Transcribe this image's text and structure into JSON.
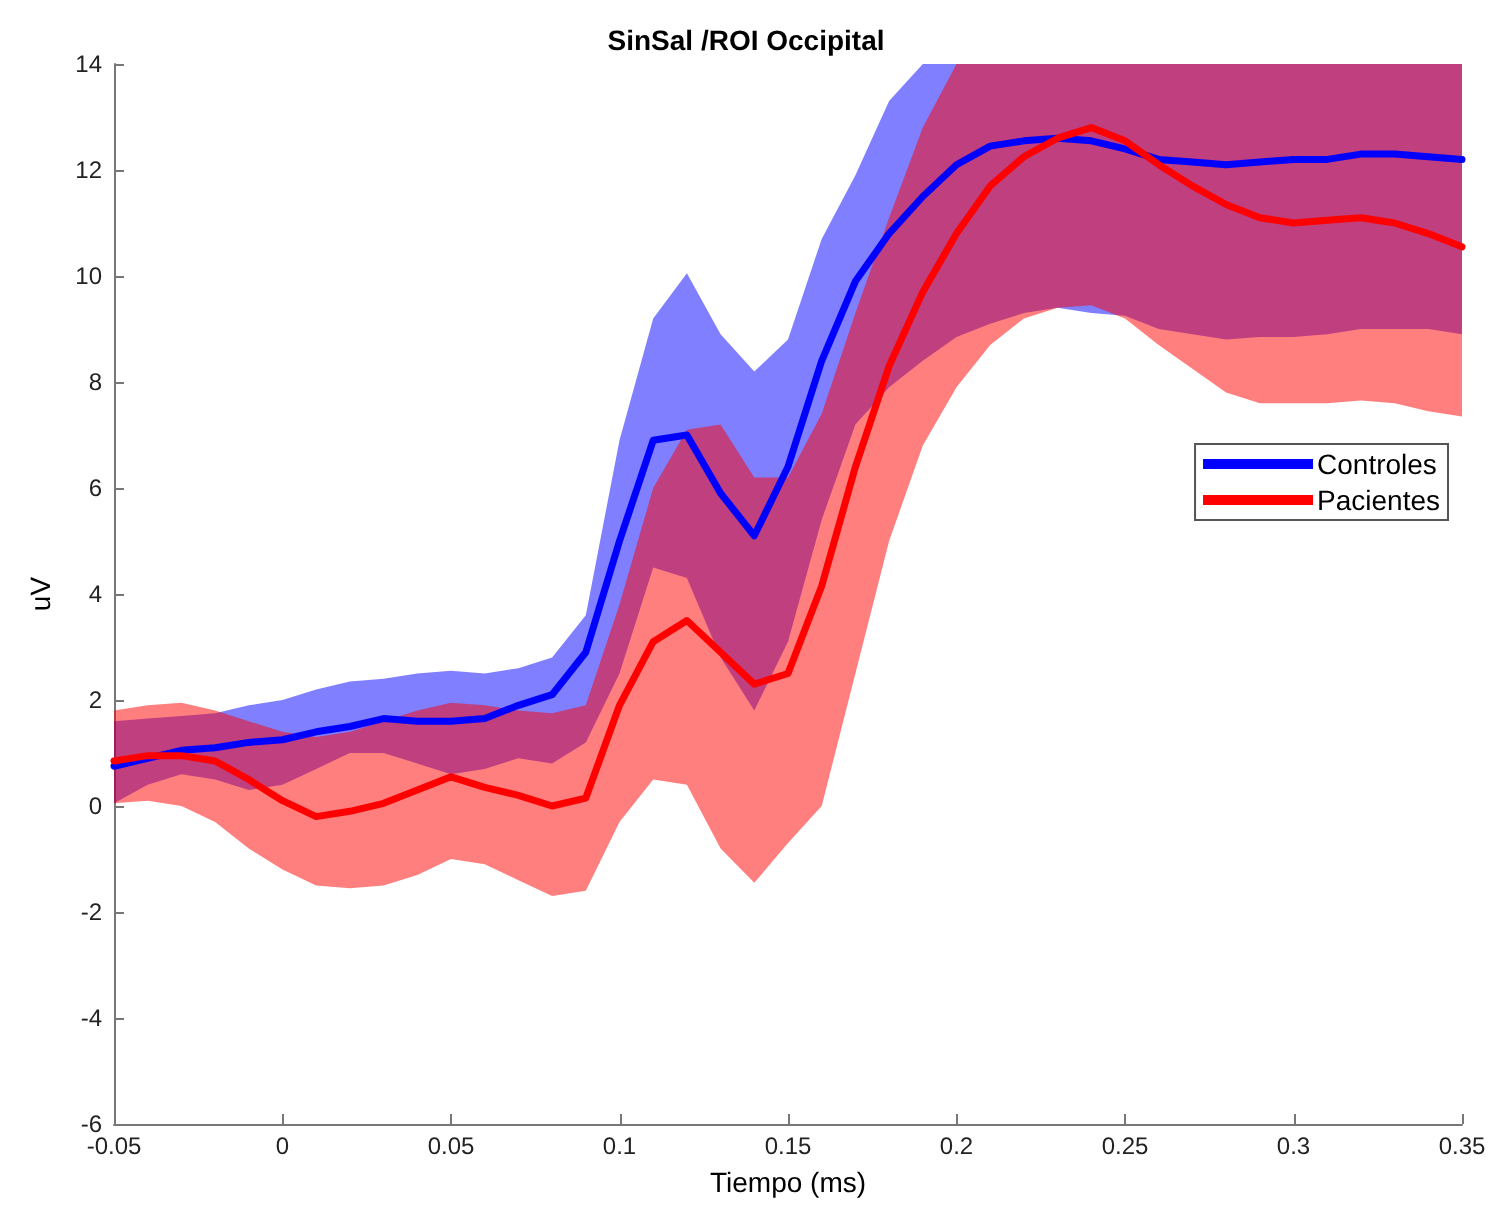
{
  "chart_data": {
    "type": "line",
    "title": "SinSal /ROI Occipital",
    "xlabel": "Tiempo (ms)",
    "ylabel": "uV",
    "x": [
      -0.05,
      -0.04,
      -0.03,
      -0.02,
      -0.01,
      0,
      0.01,
      0.02,
      0.03,
      0.04,
      0.05,
      0.06,
      0.07,
      0.08,
      0.09,
      0.1,
      0.11,
      0.12,
      0.13,
      0.14,
      0.15,
      0.16,
      0.17,
      0.18,
      0.19,
      0.2,
      0.21,
      0.22,
      0.23,
      0.24,
      0.25,
      0.26,
      0.27,
      0.28,
      0.29,
      0.3,
      0.31,
      0.32,
      0.33,
      0.34,
      0.35
    ],
    "series": [
      {
        "name": "Controles",
        "color": "#0000ff",
        "values": [
          0.75,
          0.9,
          1.05,
          1.1,
          1.2,
          1.25,
          1.4,
          1.5,
          1.65,
          1.6,
          1.6,
          1.65,
          1.9,
          2.1,
          2.9,
          5.0,
          6.9,
          7.0,
          5.9,
          5.1,
          6.4,
          8.4,
          9.9,
          10.8,
          11.5,
          12.1,
          12.45,
          12.55,
          12.6,
          12.55,
          12.4,
          12.2,
          12.15,
          12.1,
          12.15,
          12.2,
          12.2,
          12.3,
          12.3,
          12.25,
          12.2
        ],
        "lower": [
          0.05,
          0.4,
          0.6,
          0.5,
          0.3,
          0.4,
          0.7,
          1.0,
          1.0,
          0.8,
          0.6,
          0.7,
          0.9,
          0.8,
          1.2,
          2.5,
          4.5,
          4.3,
          2.8,
          1.8,
          3.1,
          5.4,
          7.2,
          7.9,
          8.4,
          8.85,
          9.1,
          9.3,
          9.4,
          9.3,
          9.25,
          9.0,
          8.9,
          8.8,
          8.85,
          8.85,
          8.9,
          9.0,
          9.0,
          9.0,
          8.9
        ],
        "upper": [
          1.6,
          1.65,
          1.7,
          1.75,
          1.9,
          2.0,
          2.2,
          2.35,
          2.4,
          2.5,
          2.55,
          2.5,
          2.6,
          2.8,
          3.6,
          6.9,
          9.2,
          10.05,
          8.9,
          8.2,
          8.8,
          10.7,
          11.9,
          13.3,
          14,
          14,
          14,
          14,
          14,
          14,
          14,
          14,
          14,
          14,
          14,
          14,
          14,
          14,
          14,
          14,
          14
        ]
      },
      {
        "name": "Pacientes",
        "color": "#ff0000",
        "values": [
          0.85,
          0.95,
          0.95,
          0.85,
          0.5,
          0.1,
          -0.2,
          -0.1,
          0.05,
          0.3,
          0.55,
          0.35,
          0.2,
          0.0,
          0.15,
          1.9,
          3.1,
          3.5,
          2.9,
          2.3,
          2.5,
          4.15,
          6.4,
          8.3,
          9.7,
          10.8,
          11.7,
          12.25,
          12.6,
          12.8,
          12.55,
          12.1,
          11.7,
          11.35,
          11.1,
          11.0,
          11.05,
          11.1,
          11.0,
          10.8,
          10.55
        ],
        "lower": [
          0.05,
          0.1,
          0.0,
          -0.3,
          -0.8,
          -1.2,
          -1.5,
          -1.55,
          -1.5,
          -1.3,
          -1.0,
          -1.1,
          -1.4,
          -1.7,
          -1.6,
          -0.3,
          0.5,
          0.4,
          -0.8,
          -1.45,
          -0.7,
          0.0,
          2.5,
          5.0,
          6.8,
          7.9,
          8.7,
          9.2,
          9.4,
          9.45,
          9.2,
          8.7,
          8.25,
          7.8,
          7.6,
          7.6,
          7.6,
          7.65,
          7.6,
          7.45,
          7.35
        ],
        "upper": [
          1.8,
          1.9,
          1.95,
          1.8,
          1.6,
          1.4,
          1.3,
          1.4,
          1.6,
          1.8,
          1.95,
          1.9,
          1.8,
          1.75,
          1.9,
          3.8,
          6.0,
          7.1,
          7.2,
          6.2,
          6.2,
          7.4,
          9.3,
          11.1,
          12.8,
          14,
          14,
          14,
          14,
          14,
          14,
          14,
          14,
          14,
          14,
          14,
          14,
          14,
          14,
          14,
          14
        ]
      }
    ],
    "xlim": [
      -0.05,
      0.35
    ],
    "xticks": [
      -0.05,
      0,
      0.05,
      0.1,
      0.15,
      0.2,
      0.25,
      0.3,
      0.35
    ],
    "ylim": [
      -6,
      14
    ],
    "yticks": [
      -6,
      -4,
      -2,
      0,
      2,
      4,
      6,
      8,
      10,
      12,
      14
    ],
    "grid": false,
    "legend": "right",
    "marker": "none",
    "line_style": "solid"
  }
}
